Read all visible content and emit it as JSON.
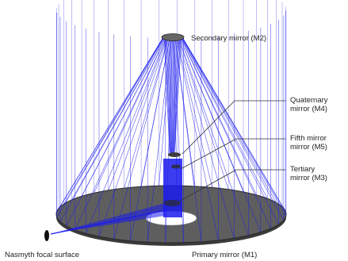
{
  "labels": {
    "m2": "Secondary mirror (M2)",
    "m4_line1": "Quaternary",
    "m4_line2": "mirror (M4)",
    "m5_line1": "Fifth mirror",
    "m5_line2": "mirror (M5)",
    "m3_line1": "Tertiary",
    "m3_line2": "mirror (M3)",
    "nasmyth": "Nasmyth focal surface",
    "m1": "Primary mirror (M1)"
  },
  "colors": {
    "ray": "#1a1aee",
    "mirror_fill": "#5e5e5e",
    "mirror_edge": "#2a2a2a",
    "leader": "#333333",
    "background": "#ffffff"
  }
}
